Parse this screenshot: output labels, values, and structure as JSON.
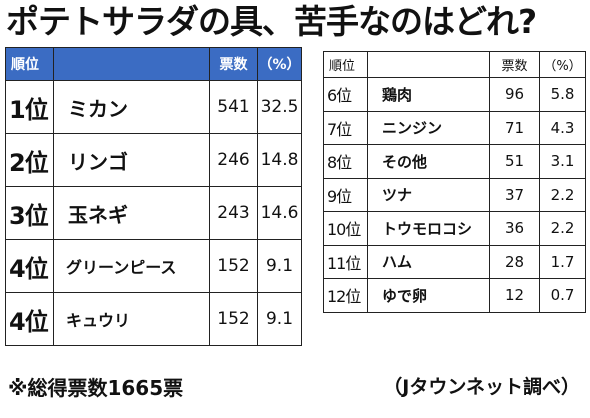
{
  "title": "ポテトサラダの具、苦手なのはどれ?",
  "headers": {
    "rank": "順位",
    "votes": "票数",
    "percent": "（%）"
  },
  "left_rows": [
    {
      "rank": "1位",
      "item": "ミカン",
      "votes": "541",
      "percent": "32.5"
    },
    {
      "rank": "2位",
      "item": "リンゴ",
      "votes": "246",
      "percent": "14.8"
    },
    {
      "rank": "3位",
      "item": "玉ネギ",
      "votes": "243",
      "percent": "14.6"
    },
    {
      "rank": "4位",
      "item": "グリーンピース",
      "votes": "152",
      "percent": "9.1"
    },
    {
      "rank": "4位",
      "item": "キュウリ",
      "votes": "152",
      "percent": "9.1"
    }
  ],
  "right_rows": [
    {
      "rank": "6位",
      "item": "鶏肉",
      "votes": "96",
      "percent": "5.8"
    },
    {
      "rank": "7位",
      "item": "ニンジン",
      "votes": "71",
      "percent": "4.3"
    },
    {
      "rank": "8位",
      "item": "その他",
      "votes": "51",
      "percent": "3.1"
    },
    {
      "rank": "9位",
      "item": "ツナ",
      "votes": "37",
      "percent": "2.2"
    },
    {
      "rank": "10位",
      "item": "トウモロコシ",
      "votes": "36",
      "percent": "2.2"
    },
    {
      "rank": "11位",
      "item": "ハム",
      "votes": "28",
      "percent": "1.7"
    },
    {
      "rank": "12位",
      "item": "ゆで卵",
      "votes": "12",
      "percent": "0.7"
    }
  ],
  "footnote": "※総得票数1665票",
  "source": "（Jタウンネット調べ）",
  "colors": {
    "header_bg": "#3b6cc3",
    "header_text": "#ffffff"
  }
}
